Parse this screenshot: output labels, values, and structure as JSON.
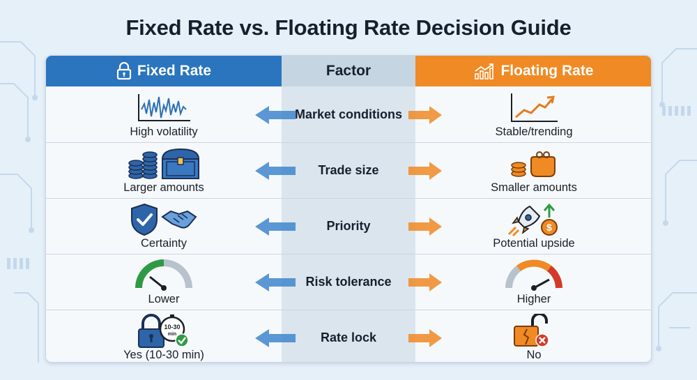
{
  "title": "Fixed Rate vs. Floating Rate Decision Guide",
  "headers": {
    "left": {
      "label": "Fixed Rate",
      "icon": "lock-icon",
      "color": "#2a75bd"
    },
    "middle": {
      "label": "Factor",
      "color": "#c6d5e2"
    },
    "right": {
      "label": "Floating Rate",
      "icon": "rising-chart-icon",
      "color": "#f08a24"
    }
  },
  "rows": [
    {
      "factor": "Market conditions",
      "fixed": {
        "label": "High volatility",
        "icon": "volatile-chart-icon"
      },
      "floating": {
        "label": "Stable/trending",
        "icon": "trending-chart-icon"
      }
    },
    {
      "factor": "Trade size",
      "fixed": {
        "label": "Larger amounts",
        "icon": "coins-and-chest-icon"
      },
      "floating": {
        "label": "Smaller amounts",
        "icon": "coins-and-purse-icon"
      }
    },
    {
      "factor": "Priority",
      "fixed": {
        "label": "Certainty",
        "icon": "shield-handshake-icon"
      },
      "floating": {
        "label": "Potential upside",
        "icon": "rocket-dollar-icon"
      }
    },
    {
      "factor": "Risk tolerance",
      "fixed": {
        "label": "Lower",
        "icon": "gauge-low-icon"
      },
      "floating": {
        "label": "Higher",
        "icon": "gauge-high-icon"
      }
    },
    {
      "factor": "Rate lock",
      "fixed": {
        "label": "Yes (10-30 min)",
        "icon": "lock-timer-icon",
        "badge": "10-30",
        "badge_unit": "min"
      },
      "floating": {
        "label": "No",
        "icon": "unlock-denied-icon"
      }
    }
  ]
}
